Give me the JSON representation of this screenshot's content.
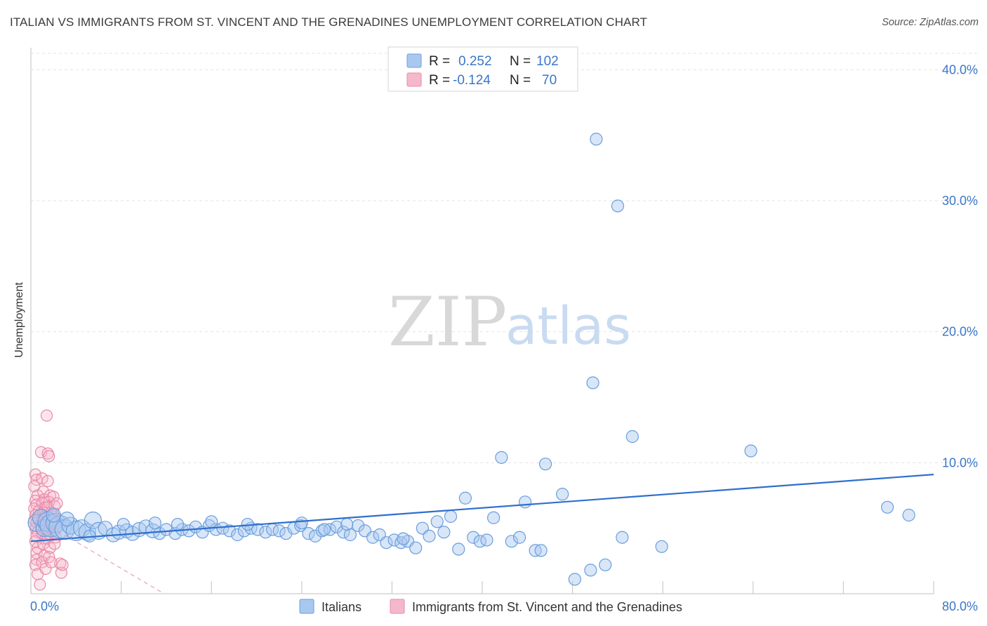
{
  "header": {
    "title": "ITALIAN VS IMMIGRANTS FROM ST. VINCENT AND THE GRENADINES UNEMPLOYMENT CORRELATION CHART",
    "source": "Source: ZipAtlas.com"
  },
  "watermark": {
    "zip": "ZIP",
    "atlas": "atlas"
  },
  "legend": {
    "rows": [
      {
        "r_label": "R =",
        "r_value": "0.252",
        "n_label": "N =",
        "n_value": "102",
        "color": "#a9c8f0"
      },
      {
        "r_label": "R =",
        "r_value": "-0.124",
        "n_label": "N =",
        "n_value": "70",
        "color": "#f5b8cb"
      }
    ]
  },
  "bottom_legend": {
    "italians": "Italians",
    "immigrants": "Immigrants from St. Vincent and the Grenadines"
  },
  "colors": {
    "blue_fill": "#a9c8f0",
    "blue_stroke": "#6a9edc",
    "blue_line": "#2f6fcc",
    "pink_fill": "#f5b8cb",
    "pink_stroke": "#e98aa8",
    "pink_line": "#e8a0b5",
    "tick_label": "#3a76c8",
    "grid": "#e3e3e3"
  },
  "chart_data": {
    "type": "scatter",
    "title": "ITALIAN VS IMMIGRANTS FROM ST. VINCENT AND THE GRENADINES UNEMPLOYMENT CORRELATION CHART",
    "xlabel": "",
    "ylabel": "Unemployment",
    "xlim": [
      0,
      80
    ],
    "ylim": [
      0,
      42
    ],
    "x_tick_labels": {
      "left": "0.0%",
      "right": "80.0%"
    },
    "y_ticks": [
      {
        "value": 10,
        "label": "10.0%"
      },
      {
        "value": 20,
        "label": "20.0%"
      },
      {
        "value": 30,
        "label": "30.0%"
      },
      {
        "value": 40,
        "label": "40.0%"
      }
    ],
    "grid": true,
    "legend_position": "top-center",
    "series": [
      {
        "name": "Italians",
        "color": "#a9c8f0",
        "trend": {
          "x": [
            0,
            80
          ],
          "y": [
            4.0,
            9.1
          ]
        },
        "points": [
          {
            "x": 0.5,
            "y": 5.4,
            "s": 3
          },
          {
            "x": 0.9,
            "y": 5.8,
            "s": 3
          },
          {
            "x": 1.2,
            "y": 5.0,
            "s": 3
          },
          {
            "x": 1.5,
            "y": 5.5,
            "s": 4
          },
          {
            "x": 1.8,
            "y": 5.2,
            "s": 5
          },
          {
            "x": 2.2,
            "y": 5.4,
            "s": 4
          },
          {
            "x": 2.6,
            "y": 5.1,
            "s": 5
          },
          {
            "x": 3.0,
            "y": 4.9,
            "s": 4
          },
          {
            "x": 3.5,
            "y": 5.2,
            "s": 3
          },
          {
            "x": 4.0,
            "y": 4.8,
            "s": 4
          },
          {
            "x": 4.5,
            "y": 5.0,
            "s": 3
          },
          {
            "x": 5.0,
            "y": 4.7,
            "s": 3
          },
          {
            "x": 5.5,
            "y": 5.6,
            "s": 3
          },
          {
            "x": 6.0,
            "y": 4.8,
            "s": 3
          },
          {
            "x": 6.6,
            "y": 5.0,
            "s": 2
          },
          {
            "x": 7.3,
            "y": 4.5,
            "s": 2
          },
          {
            "x": 7.8,
            "y": 4.7,
            "s": 2
          },
          {
            "x": 8.5,
            "y": 4.8,
            "s": 2
          },
          {
            "x": 9.0,
            "y": 4.6,
            "s": 2
          },
          {
            "x": 9.6,
            "y": 4.9,
            "s": 2
          },
          {
            "x": 10.2,
            "y": 5.1,
            "s": 2
          },
          {
            "x": 10.8,
            "y": 4.8,
            "s": 2
          },
          {
            "x": 11.4,
            "y": 4.6,
            "s": 1
          },
          {
            "x": 12.0,
            "y": 4.9,
            "s": 1
          },
          {
            "x": 12.8,
            "y": 4.6,
            "s": 1
          },
          {
            "x": 13.4,
            "y": 4.9,
            "s": 1
          },
          {
            "x": 14.0,
            "y": 4.8,
            "s": 1
          },
          {
            "x": 14.6,
            "y": 5.1,
            "s": 1
          },
          {
            "x": 15.2,
            "y": 4.7,
            "s": 1
          },
          {
            "x": 15.8,
            "y": 5.2,
            "s": 1
          },
          {
            "x": 16.4,
            "y": 4.9,
            "s": 1
          },
          {
            "x": 17.0,
            "y": 5.0,
            "s": 1
          },
          {
            "x": 17.6,
            "y": 4.8,
            "s": 1
          },
          {
            "x": 18.3,
            "y": 4.5,
            "s": 1
          },
          {
            "x": 18.9,
            "y": 4.8,
            "s": 1
          },
          {
            "x": 19.5,
            "y": 5.0,
            "s": 1
          },
          {
            "x": 20.1,
            "y": 4.9,
            "s": 1
          },
          {
            "x": 20.8,
            "y": 4.7,
            "s": 1
          },
          {
            "x": 21.4,
            "y": 4.9,
            "s": 1
          },
          {
            "x": 22.0,
            "y": 4.8,
            "s": 1
          },
          {
            "x": 22.6,
            "y": 4.6,
            "s": 1
          },
          {
            "x": 23.3,
            "y": 5.0,
            "s": 1
          },
          {
            "x": 23.9,
            "y": 5.2,
            "s": 1
          },
          {
            "x": 24.6,
            "y": 4.6,
            "s": 1
          },
          {
            "x": 25.2,
            "y": 4.4,
            "s": 1
          },
          {
            "x": 25.8,
            "y": 4.8,
            "s": 1
          },
          {
            "x": 26.5,
            "y": 4.9,
            "s": 1
          },
          {
            "x": 27.1,
            "y": 5.1,
            "s": 1
          },
          {
            "x": 27.7,
            "y": 4.7,
            "s": 1
          },
          {
            "x": 28.3,
            "y": 4.5,
            "s": 1
          },
          {
            "x": 29.0,
            "y": 5.2,
            "s": 1
          },
          {
            "x": 29.6,
            "y": 4.8,
            "s": 1
          },
          {
            "x": 30.3,
            "y": 4.3,
            "s": 1
          },
          {
            "x": 30.9,
            "y": 4.5,
            "s": 1
          },
          {
            "x": 31.5,
            "y": 3.9,
            "s": 1
          },
          {
            "x": 32.2,
            "y": 4.1,
            "s": 1
          },
          {
            "x": 32.8,
            "y": 3.9,
            "s": 1
          },
          {
            "x": 33.4,
            "y": 4.0,
            "s": 1
          },
          {
            "x": 34.1,
            "y": 3.5,
            "s": 1
          },
          {
            "x": 34.7,
            "y": 5.0,
            "s": 1
          },
          {
            "x": 35.3,
            "y": 4.4,
            "s": 1
          },
          {
            "x": 36.0,
            "y": 5.5,
            "s": 1
          },
          {
            "x": 36.6,
            "y": 4.7,
            "s": 1
          },
          {
            "x": 37.2,
            "y": 5.9,
            "s": 1
          },
          {
            "x": 37.9,
            "y": 3.4,
            "s": 1
          },
          {
            "x": 38.5,
            "y": 7.3,
            "s": 1
          },
          {
            "x": 39.2,
            "y": 4.3,
            "s": 1
          },
          {
            "x": 39.8,
            "y": 4.0,
            "s": 1
          },
          {
            "x": 40.4,
            "y": 4.1,
            "s": 1
          },
          {
            "x": 41.0,
            "y": 5.8,
            "s": 1
          },
          {
            "x": 41.7,
            "y": 10.4,
            "s": 1
          },
          {
            "x": 42.6,
            "y": 4.0,
            "s": 1
          },
          {
            "x": 43.3,
            "y": 4.3,
            "s": 1
          },
          {
            "x": 43.8,
            "y": 7.0,
            "s": 1
          },
          {
            "x": 44.7,
            "y": 3.3,
            "s": 1
          },
          {
            "x": 45.2,
            "y": 3.3,
            "s": 1
          },
          {
            "x": 45.6,
            "y": 9.9,
            "s": 1
          },
          {
            "x": 47.1,
            "y": 7.6,
            "s": 1
          },
          {
            "x": 48.2,
            "y": 1.1,
            "s": 1
          },
          {
            "x": 49.6,
            "y": 1.8,
            "s": 1
          },
          {
            "x": 49.8,
            "y": 16.1,
            "s": 1
          },
          {
            "x": 50.1,
            "y": 34.7,
            "s": 1
          },
          {
            "x": 50.9,
            "y": 2.2,
            "s": 1
          },
          {
            "x": 52.0,
            "y": 29.6,
            "s": 1
          },
          {
            "x": 52.4,
            "y": 4.3,
            "s": 1
          },
          {
            "x": 53.3,
            "y": 12.0,
            "s": 1
          },
          {
            "x": 55.9,
            "y": 3.6,
            "s": 1
          },
          {
            "x": 63.8,
            "y": 10.9,
            "s": 1
          },
          {
            "x": 75.9,
            "y": 6.6,
            "s": 1
          },
          {
            "x": 77.8,
            "y": 6.0,
            "s": 1
          },
          {
            "x": 2.0,
            "y": 6.0,
            "s": 2
          },
          {
            "x": 3.2,
            "y": 5.7,
            "s": 2
          },
          {
            "x": 5.2,
            "y": 4.4,
            "s": 1
          },
          {
            "x": 8.2,
            "y": 5.3,
            "s": 1
          },
          {
            "x": 11.0,
            "y": 5.4,
            "s": 1
          },
          {
            "x": 13.0,
            "y": 5.3,
            "s": 1
          },
          {
            "x": 16.0,
            "y": 5.5,
            "s": 1
          },
          {
            "x": 19.2,
            "y": 5.3,
            "s": 1
          },
          {
            "x": 24.0,
            "y": 5.4,
            "s": 1
          },
          {
            "x": 26.0,
            "y": 4.9,
            "s": 1
          },
          {
            "x": 28.0,
            "y": 5.3,
            "s": 1
          },
          {
            "x": 33.0,
            "y": 4.2,
            "s": 1
          }
        ]
      },
      {
        "name": "Immigrants from St. Vincent and the Grenadines",
        "color": "#f5b8cb",
        "trend": {
          "x": [
            0,
            11.8
          ],
          "y": [
            6.0,
            0.0
          ]
        },
        "points": [
          {
            "x": 0.4,
            "y": 9.1
          },
          {
            "x": 0.5,
            "y": 8.7
          },
          {
            "x": 0.3,
            "y": 8.2
          },
          {
            "x": 0.6,
            "y": 7.5
          },
          {
            "x": 0.4,
            "y": 7.1
          },
          {
            "x": 0.5,
            "y": 6.8
          },
          {
            "x": 0.3,
            "y": 6.5
          },
          {
            "x": 0.7,
            "y": 6.3
          },
          {
            "x": 0.4,
            "y": 6.0
          },
          {
            "x": 0.6,
            "y": 5.8
          },
          {
            "x": 0.3,
            "y": 5.6
          },
          {
            "x": 0.5,
            "y": 5.4
          },
          {
            "x": 0.8,
            "y": 5.2
          },
          {
            "x": 0.4,
            "y": 5.0
          },
          {
            "x": 0.6,
            "y": 4.7
          },
          {
            "x": 0.5,
            "y": 4.4
          },
          {
            "x": 0.4,
            "y": 4.0
          },
          {
            "x": 0.6,
            "y": 3.5
          },
          {
            "x": 0.5,
            "y": 3.1
          },
          {
            "x": 0.5,
            "y": 2.6
          },
          {
            "x": 0.4,
            "y": 2.2
          },
          {
            "x": 0.6,
            "y": 1.5
          },
          {
            "x": 0.8,
            "y": 0.7
          },
          {
            "x": 0.9,
            "y": 10.8
          },
          {
            "x": 1.0,
            "y": 8.8
          },
          {
            "x": 1.1,
            "y": 7.8
          },
          {
            "x": 1.2,
            "y": 7.2
          },
          {
            "x": 1.0,
            "y": 6.9
          },
          {
            "x": 1.3,
            "y": 6.6
          },
          {
            "x": 1.1,
            "y": 6.2
          },
          {
            "x": 1.2,
            "y": 5.9
          },
          {
            "x": 1.0,
            "y": 5.7
          },
          {
            "x": 1.4,
            "y": 5.5
          },
          {
            "x": 1.1,
            "y": 5.3
          },
          {
            "x": 1.2,
            "y": 4.9
          },
          {
            "x": 1.0,
            "y": 4.6
          },
          {
            "x": 1.3,
            "y": 4.2
          },
          {
            "x": 1.1,
            "y": 3.8
          },
          {
            "x": 1.2,
            "y": 2.9
          },
          {
            "x": 1.0,
            "y": 2.4
          },
          {
            "x": 1.3,
            "y": 1.9
          },
          {
            "x": 1.4,
            "y": 13.6
          },
          {
            "x": 1.5,
            "y": 10.7
          },
          {
            "x": 1.6,
            "y": 10.5
          },
          {
            "x": 1.5,
            "y": 8.6
          },
          {
            "x": 1.7,
            "y": 7.5
          },
          {
            "x": 1.6,
            "y": 7.0
          },
          {
            "x": 1.5,
            "y": 6.6
          },
          {
            "x": 1.8,
            "y": 6.2
          },
          {
            "x": 1.6,
            "y": 5.8
          },
          {
            "x": 1.5,
            "y": 5.5
          },
          {
            "x": 1.7,
            "y": 5.1
          },
          {
            "x": 1.6,
            "y": 4.6
          },
          {
            "x": 1.5,
            "y": 4.2
          },
          {
            "x": 1.7,
            "y": 3.5
          },
          {
            "x": 1.6,
            "y": 2.8
          },
          {
            "x": 1.8,
            "y": 2.4
          },
          {
            "x": 2.0,
            "y": 7.4
          },
          {
            "x": 2.1,
            "y": 6.7
          },
          {
            "x": 2.0,
            "y": 6.0
          },
          {
            "x": 2.2,
            "y": 5.6
          },
          {
            "x": 2.1,
            "y": 5.2
          },
          {
            "x": 2.0,
            "y": 4.8
          },
          {
            "x": 2.2,
            "y": 4.3
          },
          {
            "x": 2.1,
            "y": 3.8
          },
          {
            "x": 2.6,
            "y": 2.3
          },
          {
            "x": 2.7,
            "y": 1.6
          },
          {
            "x": 2.8,
            "y": 2.2
          },
          {
            "x": 2.3,
            "y": 6.9
          },
          {
            "x": 2.4,
            "y": 5.4
          }
        ]
      }
    ]
  }
}
